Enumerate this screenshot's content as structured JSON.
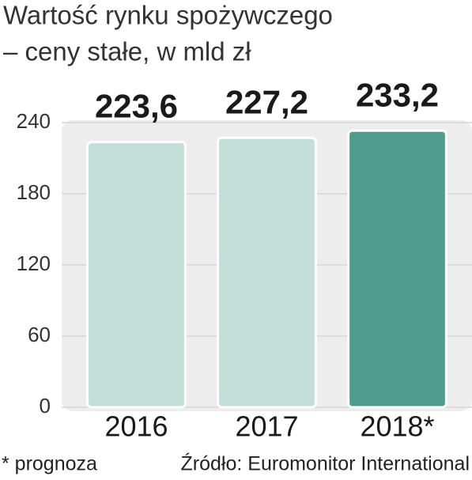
{
  "chart_data": {
    "type": "bar",
    "title": "Wartość rynku spożywczego",
    "subtitle": "– ceny stałe, w mld zł",
    "categories": [
      "2016",
      "2017",
      "2018*"
    ],
    "values": [
      223.6,
      227.2,
      233.2
    ],
    "value_labels": [
      "223,6",
      "227,2",
      "233,2"
    ],
    "colors": [
      "#c3ded6",
      "#c3ded6",
      "#4f9b8e"
    ],
    "ylim": [
      0,
      240
    ],
    "yticks": [
      0,
      60,
      120,
      180,
      240
    ],
    "grid": true,
    "footnote": "* prognoza",
    "source": "Źródło: Euromonitor International"
  }
}
